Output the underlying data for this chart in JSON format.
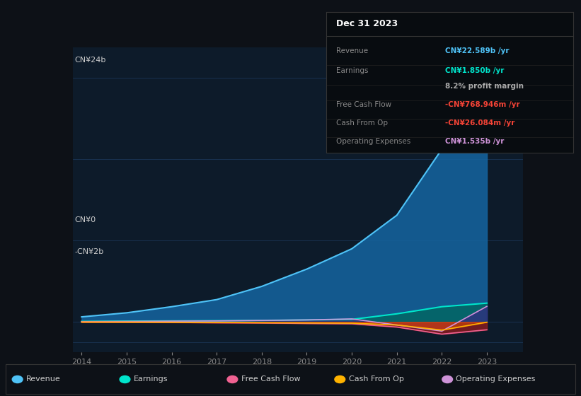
{
  "background_color": "#0d1117",
  "plot_bg_color": "#0d1b2a",
  "x_labels": [
    "2014",
    "2015",
    "2016",
    "2017",
    "2018",
    "2019",
    "2020",
    "2021",
    "2022",
    "2023"
  ],
  "series": {
    "Revenue": {
      "color": "#4fc3f7",
      "fill_color": "#1565a0",
      "values": [
        0.5,
        0.9,
        1.5,
        2.2,
        3.5,
        5.2,
        7.2,
        10.5,
        17.0,
        22.589
      ]
    },
    "Earnings": {
      "color": "#00e5cc",
      "fill_color": "#00695c",
      "values": [
        0.05,
        0.08,
        0.1,
        0.12,
        0.15,
        0.2,
        0.25,
        0.8,
        1.5,
        1.85
      ]
    },
    "Free Cash Flow": {
      "color": "#f06292",
      "fill_color": "#b71c1c",
      "values": [
        -0.02,
        -0.03,
        -0.05,
        -0.08,
        -0.1,
        -0.15,
        -0.18,
        -0.5,
        -1.2,
        -0.769
      ]
    },
    "Cash From Op": {
      "color": "#ffb300",
      "fill_color": "#e65100",
      "values": [
        -0.01,
        -0.02,
        -0.03,
        -0.05,
        -0.08,
        -0.1,
        -0.12,
        -0.3,
        -0.8,
        -0.026
      ]
    },
    "Operating Expenses": {
      "color": "#ce93d8",
      "fill_color": "#4a148c",
      "values": [
        0.03,
        0.05,
        0.08,
        0.1,
        0.15,
        0.2,
        0.3,
        -0.3,
        -0.9,
        1.535
      ]
    }
  },
  "tooltip_title": "Dec 31 2023",
  "tooltip_rows": [
    {
      "label": "Revenue",
      "value": "CN¥22.589b /yr",
      "value_color": "#4fc3f7"
    },
    {
      "label": "Earnings",
      "value": "CN¥1.850b /yr",
      "value_color": "#00e5cc"
    },
    {
      "label": "",
      "value": "8.2% profit margin",
      "value_color": "#aaaaaa"
    },
    {
      "label": "Free Cash Flow",
      "value": "-CN¥768.946m /yr",
      "value_color": "#f44336"
    },
    {
      "label": "Cash From Op",
      "value": "-CN¥26.084m /yr",
      "value_color": "#f44336"
    },
    {
      "label": "Operating Expenses",
      "value": "CN¥1.535b /yr",
      "value_color": "#ce93d8"
    }
  ],
  "legend": [
    {
      "label": "Revenue",
      "color": "#4fc3f7"
    },
    {
      "label": "Earnings",
      "color": "#00e5cc"
    },
    {
      "label": "Free Cash Flow",
      "color": "#f06292"
    },
    {
      "label": "Cash From Op",
      "color": "#ffb300"
    },
    {
      "label": "Operating Expenses",
      "color": "#ce93d8"
    }
  ],
  "ylim": [
    -3,
    27
  ],
  "ylabel_top": "CN¥24b",
  "ylabel_zero": "CN¥0",
  "ylabel_neg": "-CN¥2b"
}
